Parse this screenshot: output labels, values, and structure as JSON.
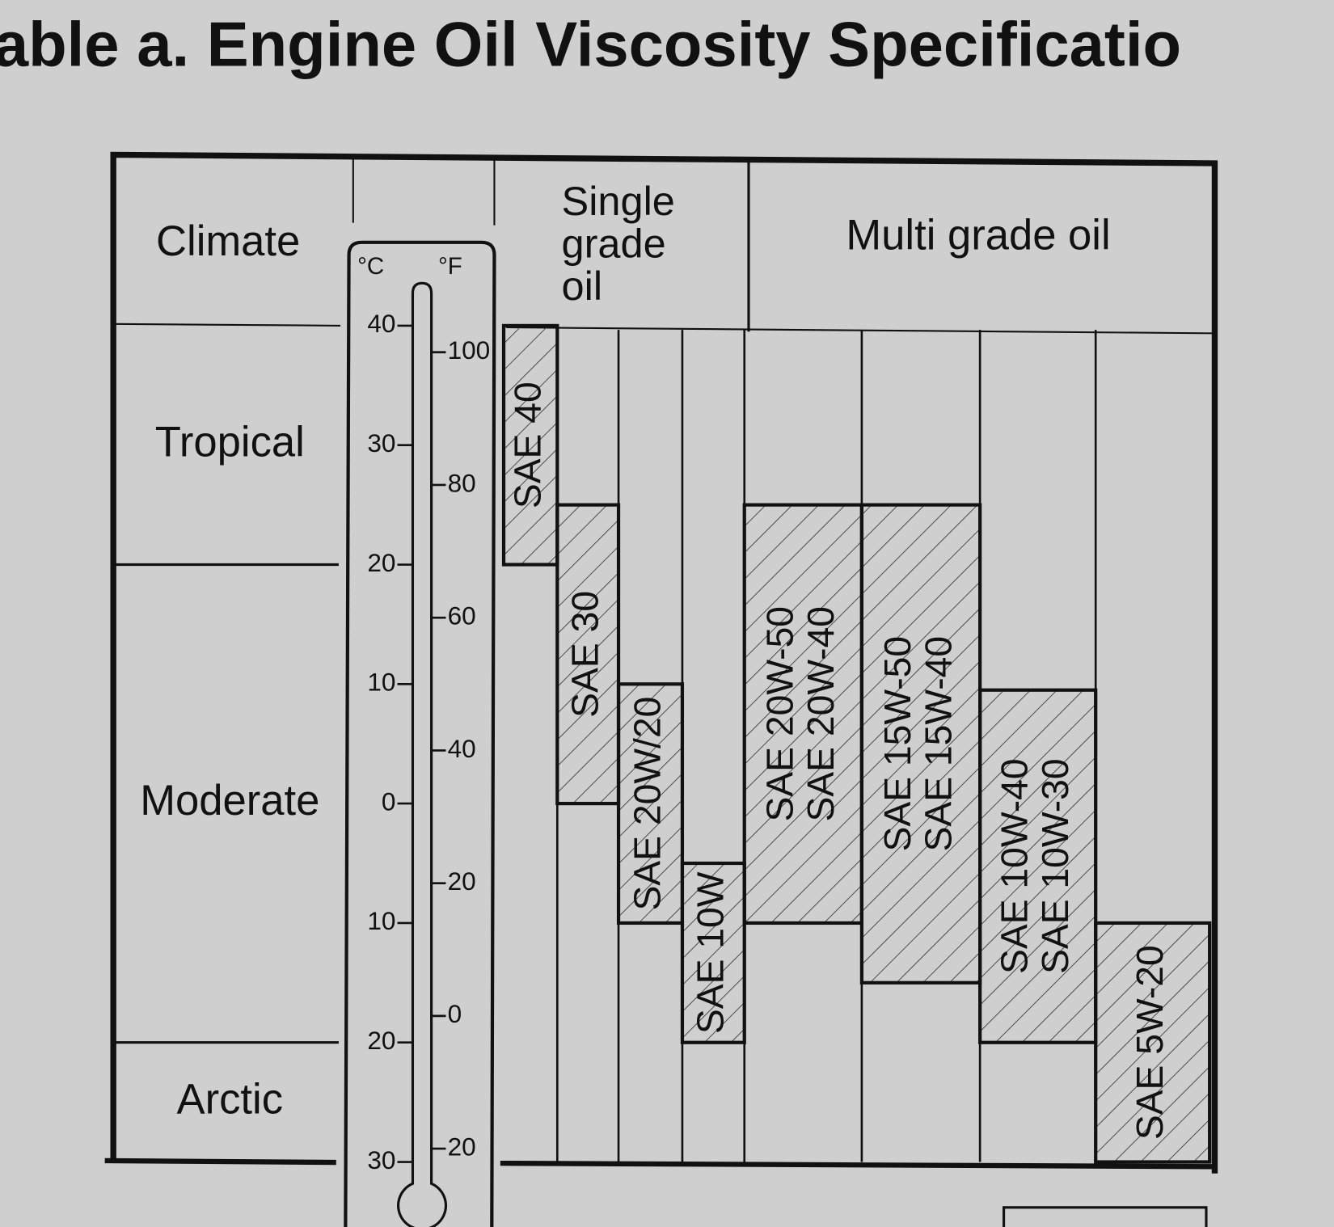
{
  "title": "able a. Engine Oil Viscosity Specificatio",
  "headers": {
    "climate": "Climate",
    "single_grade": [
      "Single",
      "grade",
      "oil"
    ],
    "multi_grade": "Multi grade oil"
  },
  "climates": [
    {
      "label": "Tropical",
      "from": 20,
      "to": 40
    },
    {
      "label": "Moderate",
      "from": -20,
      "to": 20
    },
    {
      "label": "Arctic",
      "from": -30,
      "to": -20
    }
  ],
  "thermometer": {
    "celsius_unit": "°C",
    "fahrenheit_unit": "°F",
    "celsius_ticks": [
      {
        "value": 40,
        "label": "40"
      },
      {
        "value": 30,
        "label": "30"
      },
      {
        "value": 20,
        "label": "20"
      },
      {
        "value": 10,
        "label": "10"
      },
      0,
      {
        "value": -10,
        "label": "10"
      },
      {
        "value": -20,
        "label": "20"
      },
      {
        "value": -30,
        "label": "30"
      }
    ],
    "fahrenheit_ticks": [
      100,
      80,
      60,
      40,
      20,
      0,
      {
        "value": -20,
        "label": "20"
      }
    ]
  },
  "oils": [
    {
      "labels": [
        "SAE 40"
      ],
      "from": 20,
      "to": 40
    },
    {
      "labels": [
        "SAE 30"
      ],
      "from": 0,
      "to": 25
    },
    {
      "labels": [
        "SAE 20W/20"
      ],
      "from": -10,
      "to": 10
    },
    {
      "labels": [
        "SAE 10W"
      ],
      "from": -20,
      "to": -5
    },
    {
      "labels": [
        "SAE 20W-50",
        "SAE 20W-40"
      ],
      "from": -10,
      "to": 25
    },
    {
      "labels": [
        "SAE 15W-50",
        "SAE 15W-40"
      ],
      "from": -15,
      "to": 25
    },
    {
      "labels": [
        "SAE 10W-40",
        "SAE 10W-30"
      ],
      "from": -20,
      "to": 9.5
    },
    {
      "labels": [
        "SAE 5W-20"
      ],
      "from": -30,
      "to": -10
    }
  ]
}
